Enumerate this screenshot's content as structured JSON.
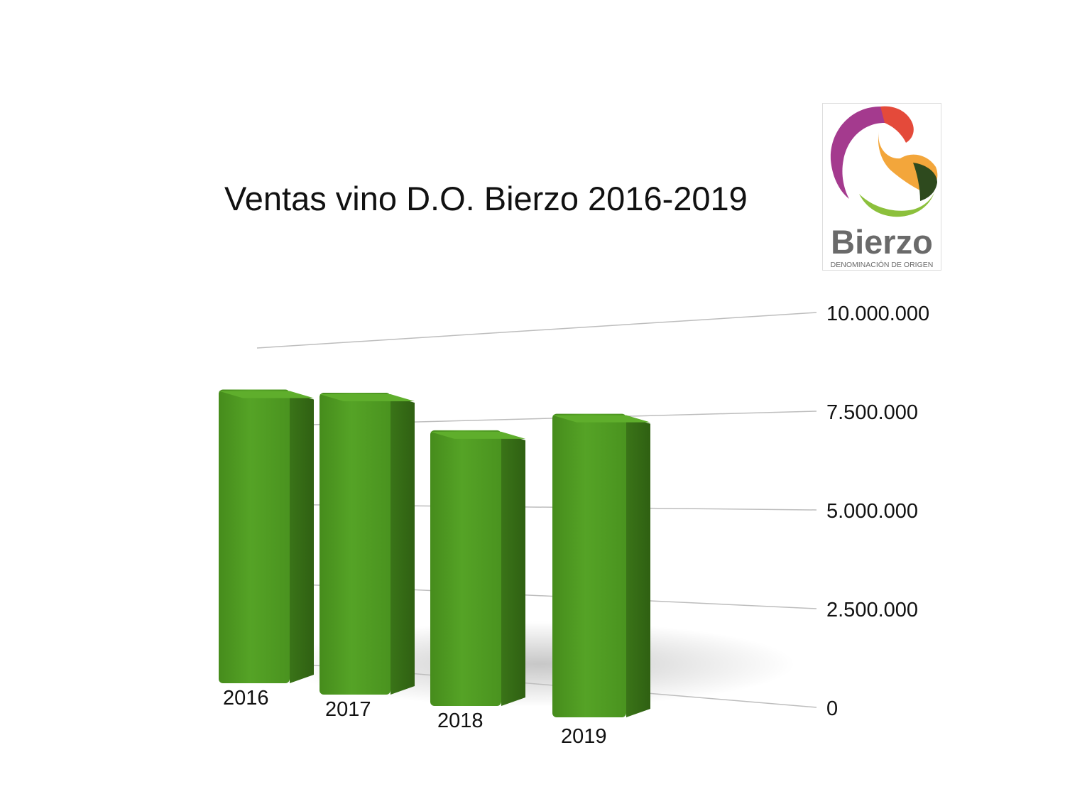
{
  "logo": {
    "name": "Bierzo",
    "subtitle": "DENOMINACIÓN DE ORIGEN"
  },
  "chart_data": {
    "type": "bar",
    "title": "Ventas vino D.O. Bierzo 2016-2019",
    "categories": [
      "2016",
      "2017",
      "2018",
      "2019"
    ],
    "values": [
      8950000,
      9200000,
      8400000,
      9250000
    ],
    "yticks": [
      "0",
      "2.500.000",
      "5.000.000",
      "7.500.000",
      "10.000.000"
    ],
    "ytick_values": [
      0,
      2500000,
      5000000,
      7500000,
      10000000
    ],
    "ylim": [
      0,
      10000000
    ],
    "grid": true,
    "bar_color": "#4e9a22",
    "xlabel": "",
    "ylabel": ""
  }
}
